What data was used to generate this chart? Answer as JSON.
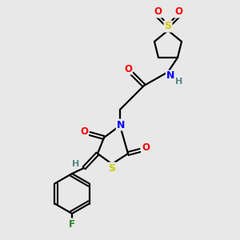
{
  "background_color": "#e8e8e8",
  "bond_color": "#000000",
  "atom_colors": {
    "O": "#ff0000",
    "N": "#0000ff",
    "S": "#cccc00",
    "F": "#228822",
    "H": "#558888",
    "C": "#000000"
  },
  "figsize": [
    3.0,
    3.0
  ],
  "dpi": 100
}
